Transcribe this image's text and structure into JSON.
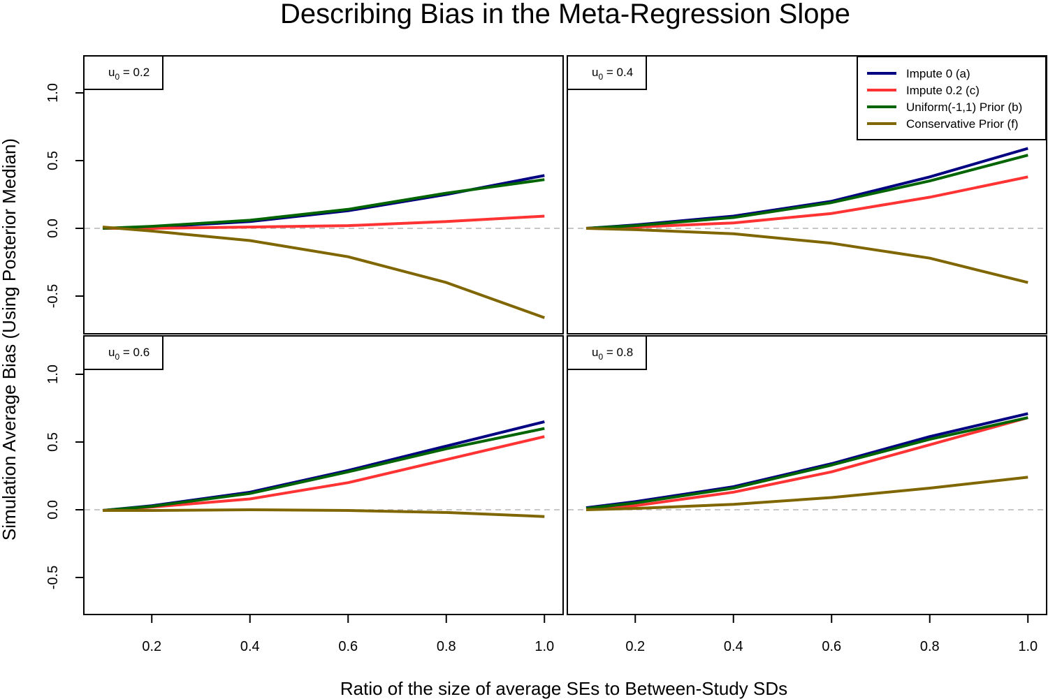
{
  "chart_data": {
    "type": "line",
    "title": "Describing Bias in the Meta-Regression Slope",
    "xlabel": "Ratio of the size of average SEs to Between-Study SDs",
    "ylabel": "Simulation Average Bias (Using Posterior Median)",
    "xlim": [
      0.1,
      1.0
    ],
    "ylim": [
      -0.8,
      1.25
    ],
    "x_ticks": [
      "0.2",
      "0.4",
      "0.6",
      "0.8",
      "1.0"
    ],
    "y_ticks": [
      "-0.5",
      "0.0",
      "0.5",
      "1.0"
    ],
    "reference_line": 0,
    "x": [
      0.1,
      0.2,
      0.4,
      0.6,
      0.8,
      1.0
    ],
    "legend": {
      "placement": "top-right of upper-right panel",
      "entries": [
        {
          "label": "Impute 0 (a)",
          "color": "#000080"
        },
        {
          "label": "Impute 0.2 (c)",
          "color": "#ff3333"
        },
        {
          "label": "Uniform(-1,1) Prior (b)",
          "color": "#006400"
        },
        {
          "label": "Conservative Prior (f)",
          "color": "#806600"
        }
      ]
    },
    "panels": [
      {
        "label_main": "u",
        "label_sub": "0",
        "label_value": " = 0.2",
        "series": [
          {
            "name": "Impute 0 (a)",
            "color": "#000080",
            "values": [
              0.0,
              0.01,
              0.05,
              0.13,
              0.25,
              0.39
            ]
          },
          {
            "name": "Impute 0.2 (c)",
            "color": "#ff3333",
            "values": [
              0.0,
              0.0,
              0.01,
              0.02,
              0.05,
              0.09
            ]
          },
          {
            "name": "Uniform(-1,1) Prior (b)",
            "color": "#006400",
            "values": [
              0.0,
              0.015,
              0.06,
              0.14,
              0.26,
              0.36
            ]
          },
          {
            "name": "Conservative Prior (f)",
            "color": "#806600",
            "values": [
              0.01,
              -0.02,
              -0.09,
              -0.21,
              -0.4,
              -0.66
            ]
          }
        ]
      },
      {
        "label_main": "u",
        "label_sub": "0",
        "label_value": " = 0.4",
        "series": [
          {
            "name": "Impute 0 (a)",
            "color": "#000080",
            "values": [
              0.0,
              0.025,
              0.09,
              0.2,
              0.38,
              0.59
            ]
          },
          {
            "name": "Impute 0.2 (c)",
            "color": "#ff3333",
            "values": [
              0.0,
              0.01,
              0.04,
              0.11,
              0.23,
              0.38
            ]
          },
          {
            "name": "Uniform(-1,1) Prior (b)",
            "color": "#006400",
            "values": [
              0.0,
              0.02,
              0.08,
              0.19,
              0.35,
              0.54
            ]
          },
          {
            "name": "Conservative Prior (f)",
            "color": "#806600",
            "values": [
              0.0,
              -0.01,
              -0.04,
              -0.11,
              -0.22,
              -0.4
            ]
          }
        ]
      },
      {
        "label_main": "u",
        "label_sub": "0",
        "label_value": " = 0.6",
        "series": [
          {
            "name": "Impute 0 (a)",
            "color": "#000080",
            "values": [
              -0.005,
              0.03,
              0.13,
              0.29,
              0.47,
              0.65
            ]
          },
          {
            "name": "Impute 0.2 (c)",
            "color": "#ff3333",
            "values": [
              -0.005,
              0.02,
              0.08,
              0.2,
              0.37,
              0.54
            ]
          },
          {
            "name": "Uniform(-1,1) Prior (b)",
            "color": "#006400",
            "values": [
              -0.005,
              0.025,
              0.12,
              0.28,
              0.45,
              0.6
            ]
          },
          {
            "name": "Conservative Prior (f)",
            "color": "#806600",
            "values": [
              -0.005,
              -0.005,
              0.0,
              -0.005,
              -0.02,
              -0.05
            ]
          }
        ]
      },
      {
        "label_main": "u",
        "label_sub": "0",
        "label_value": " = 0.8",
        "series": [
          {
            "name": "Impute 0 (a)",
            "color": "#000080",
            "values": [
              0.015,
              0.06,
              0.17,
              0.34,
              0.54,
              0.71
            ]
          },
          {
            "name": "Impute 0.2 (c)",
            "color": "#ff3333",
            "values": [
              0.0,
              0.03,
              0.13,
              0.28,
              0.48,
              0.68
            ]
          },
          {
            "name": "Uniform(-1,1) Prior (b)",
            "color": "#006400",
            "values": [
              0.01,
              0.05,
              0.16,
              0.33,
              0.52,
              0.68
            ]
          },
          {
            "name": "Conservative Prior (f)",
            "color": "#806600",
            "values": [
              0.0,
              0.01,
              0.04,
              0.09,
              0.16,
              0.24
            ]
          }
        ]
      }
    ]
  }
}
